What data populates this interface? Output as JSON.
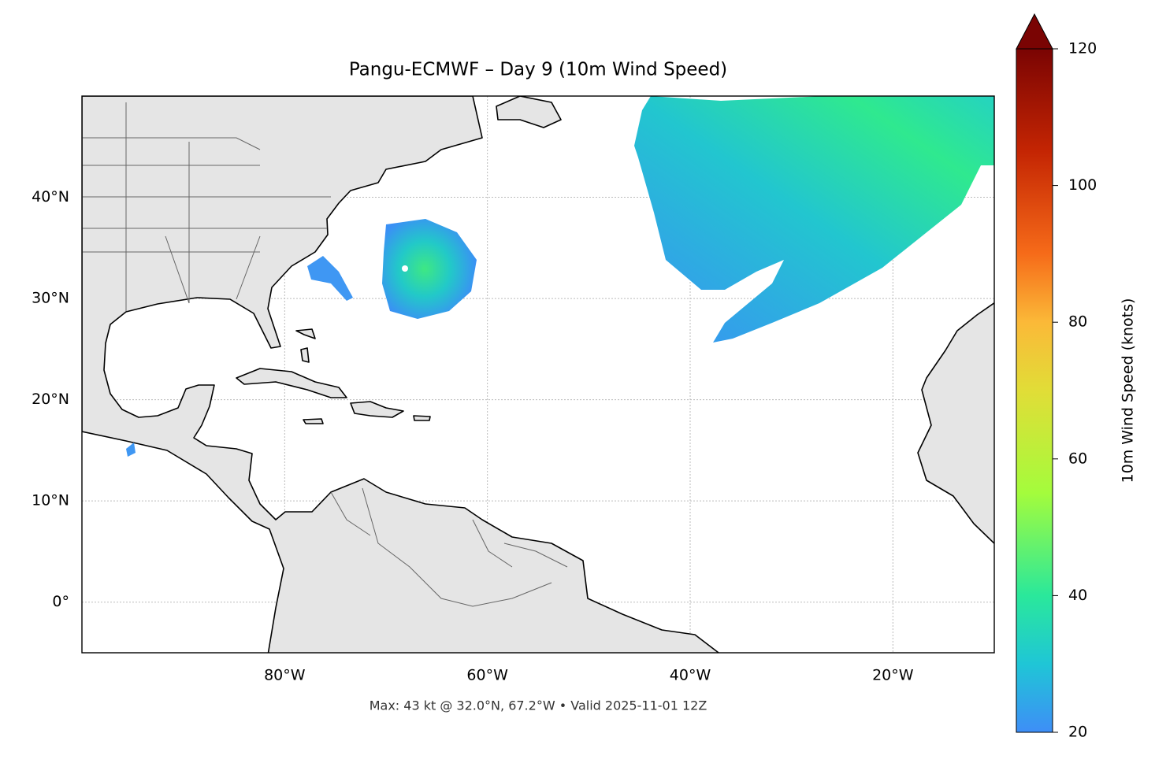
{
  "chart_data": {
    "type": "map",
    "title": "Pangu-ECMWF – Day 9 (10m Wind Speed)",
    "footer": "Max: 43 kt @ 32.0°N, 67.2°W • Valid 2025-11-01 12Z",
    "xlim": [
      -100,
      -10
    ],
    "ylim": [
      -5,
      50
    ],
    "xticks": [
      {
        "value": -80,
        "label": "80°W"
      },
      {
        "value": -60,
        "label": "60°W"
      },
      {
        "value": -40,
        "label": "40°W"
      },
      {
        "value": -20,
        "label": "20°W"
      }
    ],
    "yticks": [
      {
        "value": 0,
        "label": "0°"
      },
      {
        "value": 10,
        "label": "10°N"
      },
      {
        "value": 20,
        "label": "20°N"
      },
      {
        "value": 30,
        "label": "30°N"
      },
      {
        "value": 40,
        "label": "40°N"
      }
    ],
    "grid": true,
    "colorbar": {
      "label": "10m Wind Speed (knots)",
      "lim": [
        20,
        120
      ],
      "ticks": [
        20,
        40,
        60,
        80,
        100,
        120
      ],
      "extend": "max"
    }
  }
}
